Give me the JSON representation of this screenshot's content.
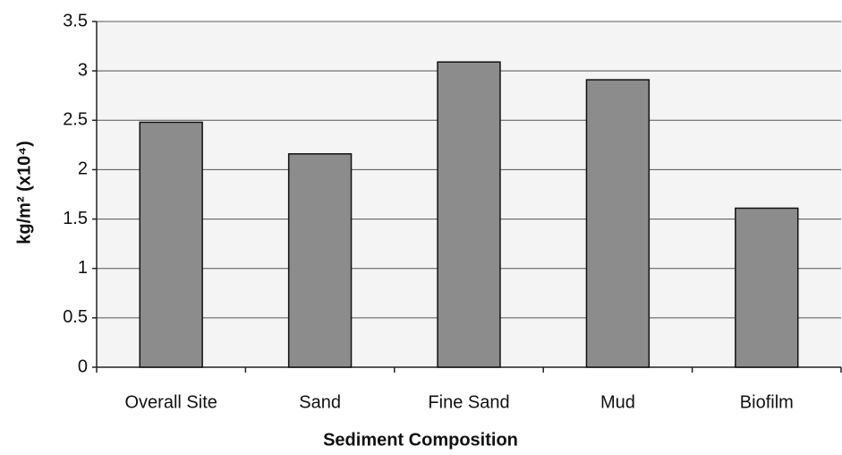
{
  "chart_data": {
    "type": "bar",
    "categories": [
      "Overall Site",
      "Sand",
      "Fine Sand",
      "Mud",
      "Biofilm"
    ],
    "values": [
      2.48,
      2.16,
      3.09,
      2.91,
      1.61
    ],
    "color": "#8c8c8c",
    "ylim": [
      0,
      3.5
    ],
    "yticks": [
      0,
      0.5,
      1,
      1.5,
      2,
      2.5,
      3,
      3.5
    ],
    "grid": true,
    "x_label": "Sediment Composition",
    "y_label": "kg/m² (x10⁴)"
  }
}
